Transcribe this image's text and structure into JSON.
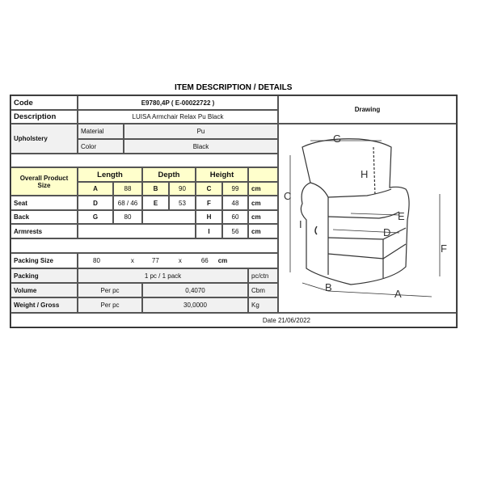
{
  "title": "ITEM DESCRIPTION / DETAILS",
  "code": {
    "label": "Code",
    "value": "E9780,4P  ( E-00022722 )"
  },
  "description": {
    "label": "Description",
    "value": "LUISA Armchair Relax Pu Black"
  },
  "drawing_label": "Drawing",
  "upholstery": {
    "label": "Upholstery",
    "material_label": "Material",
    "material": "Pu",
    "color_label": "Color",
    "color": "Black"
  },
  "size": {
    "label": "Overall Product Size",
    "length": "Length",
    "depth": "Depth",
    "height": "Height",
    "a": "A",
    "a_val": "88",
    "b": "B",
    "b_val": "90",
    "c": "C",
    "c_val": "99",
    "unit": "cm"
  },
  "seat": {
    "label": "Seat",
    "d": "D",
    "d_val": "68 / 46",
    "e": "E",
    "e_val": "53",
    "f": "F",
    "f_val": "48",
    "unit": "cm"
  },
  "back": {
    "label": "Back",
    "g": "G",
    "g_val": "80",
    "h": "H",
    "h_val": "60",
    "unit": "cm"
  },
  "armrests": {
    "label": "Armrests",
    "i": "I",
    "i_val": "56",
    "unit": "cm"
  },
  "packing_size": {
    "label": "Packing Size",
    "l": "80",
    "x1": "x",
    "w": "77",
    "x2": "x",
    "h": "66",
    "unit": "cm"
  },
  "packing": {
    "label": "Packing",
    "value": "1 pc / 1 pack",
    "unit": "pc/ctn"
  },
  "volume": {
    "label": "Volume",
    "per": "Per pc",
    "value": "0,4070",
    "unit": "Cbm"
  },
  "weight": {
    "label": "Weight / Gross",
    "per": "Per pc",
    "value": "30,0000",
    "unit": "Kg"
  },
  "date": "Date 21/06/2022",
  "drawing_letters": {
    "a": "A",
    "b": "B",
    "c": "C",
    "d": "D",
    "e": "E",
    "f": "F",
    "g": "G",
    "h": "H",
    "i": "I"
  }
}
